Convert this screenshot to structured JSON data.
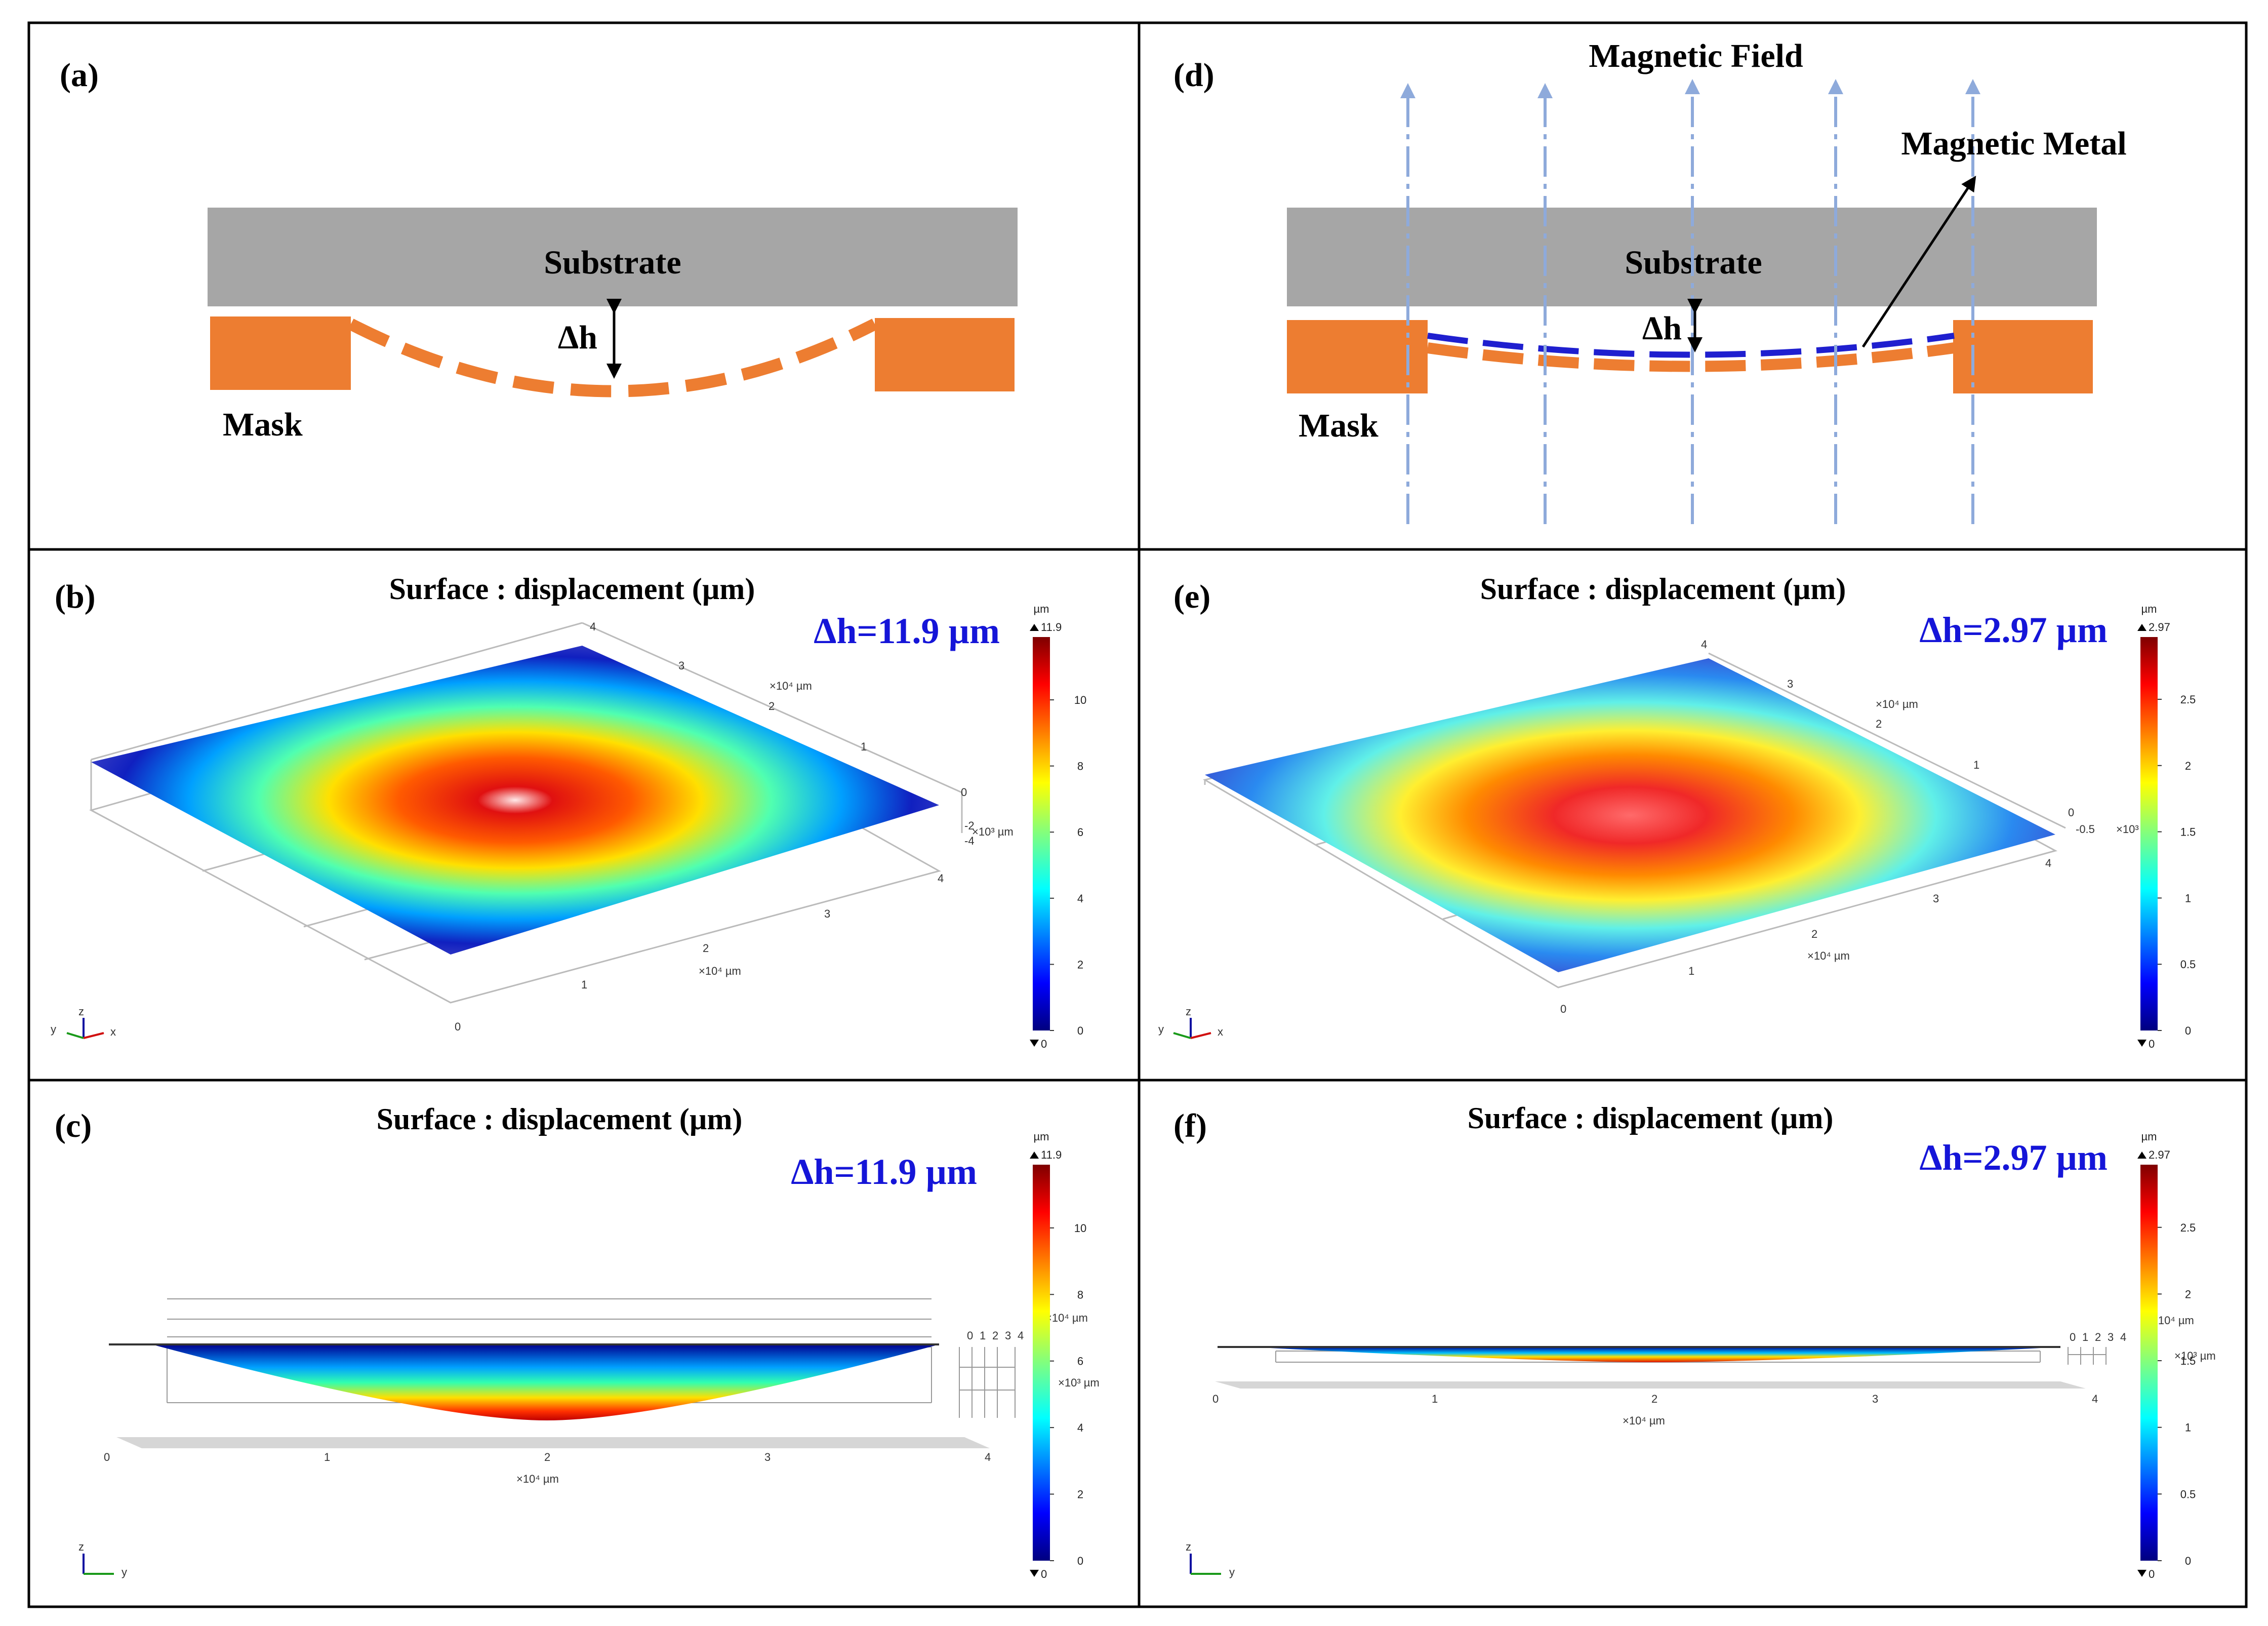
{
  "panels": {
    "a": {
      "label": "(a)",
      "substrate": "Substrate",
      "mask": "Mask",
      "delta": "Δh"
    },
    "d": {
      "label": "(d)",
      "field": "Magnetic Field",
      "metal": "Magnetic Metal",
      "substrate": "Substrate",
      "mask": "Mask",
      "delta": "Δh"
    },
    "b": {
      "label": "(b)",
      "title": "Surface : displacement (µm)",
      "dh": "Δh=11.9 µm"
    },
    "e": {
      "label": "(e)",
      "title": "Surface : displacement (µm)",
      "dh": "Δh=2.97 µm"
    },
    "c": {
      "label": "(c)",
      "title": "Surface : displacement (µm)",
      "dh": "Δh=11.9 µm"
    },
    "f": {
      "label": "(f)",
      "title": "Surface : displacement (µm)",
      "dh": "Δh=2.97 µm"
    }
  },
  "colorbars": {
    "left": {
      "unit": "µm",
      "max": "11.9",
      "min": "0",
      "ticks": [
        "10",
        "8",
        "6",
        "4",
        "2",
        "0"
      ],
      "tick_values": [
        10,
        8,
        6,
        4,
        2,
        0
      ],
      "range": [
        0,
        11.9
      ]
    },
    "right": {
      "unit": "µm",
      "max": "2.97",
      "min": "0",
      "ticks": [
        "2.5",
        "2",
        "1.5",
        "1",
        "0.5",
        "0"
      ],
      "tick_values": [
        2.5,
        2,
        1.5,
        1,
        0.5,
        0
      ],
      "range": [
        0,
        2.97
      ]
    }
  },
  "axes": {
    "xy_unit": "×10⁴ µm",
    "z_unit": "×10³ µm",
    "xy_ticks": [
      "0",
      "1",
      "2",
      "3",
      "4"
    ],
    "z_ticks_b": [
      "0",
      "-2",
      "-4"
    ],
    "z_ticks_e": [
      "0",
      "-0.5"
    ],
    "side_ticks": [
      "0",
      "1",
      "2",
      "3",
      "4"
    ],
    "triad_xyz": [
      "y",
      "z",
      "x"
    ],
    "triad_zy": [
      "z",
      "y"
    ]
  },
  "colors": {
    "substrate": "#a6a6a6",
    "mask": "#ed7d31",
    "metal": "#1f1fcf",
    "field": "#8eaadb",
    "dh_text": "#1515d8"
  }
}
